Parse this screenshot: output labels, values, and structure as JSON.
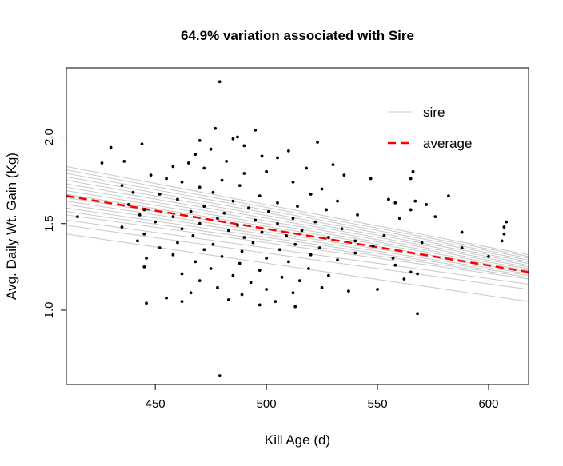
{
  "chart_data": {
    "type": "scatter",
    "title": "64.9% variation associated with Sire",
    "xlabel": "Kill Age (d)",
    "ylabel": "Avg. Daily Wt. Gain (Kg)",
    "xlim": [
      410,
      618
    ],
    "ylim": [
      0.57,
      2.4
    ],
    "xticks": [
      450,
      500,
      550,
      600
    ],
    "yticks": [
      1.0,
      1.5,
      2.0
    ],
    "ytick_labels": [
      "1.0",
      "1.5",
      "2.0"
    ],
    "legend": {
      "position": "top-right",
      "entries": [
        {
          "label": "sire",
          "color": "#c8c8c8",
          "style": "solid"
        },
        {
          "label": "average",
          "color": "#ff0000",
          "style": "dashed"
        }
      ]
    },
    "colors": {
      "points": "#000000",
      "sire": "#c8c8c8",
      "average": "#ff0000"
    },
    "average_line": {
      "x": [
        410,
        618
      ],
      "y": [
        1.66,
        1.22
      ]
    },
    "sire_lines": [
      {
        "y_at_410": 1.83,
        "y_at_618": 1.32
      },
      {
        "y_at_410": 1.81,
        "y_at_618": 1.31
      },
      {
        "y_at_410": 1.79,
        "y_at_618": 1.3
      },
      {
        "y_at_410": 1.77,
        "y_at_618": 1.29
      },
      {
        "y_at_410": 1.75,
        "y_at_618": 1.28
      },
      {
        "y_at_410": 1.73,
        "y_at_618": 1.27
      },
      {
        "y_at_410": 1.71,
        "y_at_618": 1.26
      },
      {
        "y_at_410": 1.69,
        "y_at_618": 1.25
      },
      {
        "y_at_410": 1.67,
        "y_at_618": 1.24
      },
      {
        "y_at_410": 1.65,
        "y_at_618": 1.23
      },
      {
        "y_at_410": 1.63,
        "y_at_618": 1.22
      },
      {
        "y_at_410": 1.61,
        "y_at_618": 1.21
      },
      {
        "y_at_410": 1.59,
        "y_at_618": 1.2
      },
      {
        "y_at_410": 1.57,
        "y_at_618": 1.19
      },
      {
        "y_at_410": 1.55,
        "y_at_618": 1.18
      },
      {
        "y_at_410": 1.52,
        "y_at_618": 1.15
      },
      {
        "y_at_410": 1.49,
        "y_at_618": 1.12
      },
      {
        "y_at_410": 1.44,
        "y_at_618": 1.05
      }
    ],
    "points": [
      {
        "x": 479,
        "y": 2.32
      },
      {
        "x": 477,
        "y": 2.05
      },
      {
        "x": 495,
        "y": 2.04
      },
      {
        "x": 485,
        "y": 1.99
      },
      {
        "x": 487,
        "y": 2.0
      },
      {
        "x": 470,
        "y": 1.98
      },
      {
        "x": 523,
        "y": 1.97
      },
      {
        "x": 444,
        "y": 1.96
      },
      {
        "x": 430,
        "y": 1.94
      },
      {
        "x": 475,
        "y": 1.93
      },
      {
        "x": 490,
        "y": 1.95
      },
      {
        "x": 510,
        "y": 1.92
      },
      {
        "x": 468,
        "y": 1.9
      },
      {
        "x": 498,
        "y": 1.89
      },
      {
        "x": 505,
        "y": 1.88
      },
      {
        "x": 436,
        "y": 1.86
      },
      {
        "x": 465,
        "y": 1.85
      },
      {
        "x": 482,
        "y": 1.86
      },
      {
        "x": 530,
        "y": 1.84
      },
      {
        "x": 426,
        "y": 1.85
      },
      {
        "x": 458,
        "y": 1.83
      },
      {
        "x": 472,
        "y": 1.82
      },
      {
        "x": 518,
        "y": 1.82
      },
      {
        "x": 566,
        "y": 1.8
      },
      {
        "x": 547,
        "y": 1.76
      },
      {
        "x": 448,
        "y": 1.78
      },
      {
        "x": 490,
        "y": 1.79
      },
      {
        "x": 500,
        "y": 1.8
      },
      {
        "x": 535,
        "y": 1.78
      },
      {
        "x": 455,
        "y": 1.76
      },
      {
        "x": 462,
        "y": 1.74
      },
      {
        "x": 480,
        "y": 1.75
      },
      {
        "x": 512,
        "y": 1.74
      },
      {
        "x": 565,
        "y": 1.76
      },
      {
        "x": 435,
        "y": 1.72
      },
      {
        "x": 470,
        "y": 1.71
      },
      {
        "x": 488,
        "y": 1.72
      },
      {
        "x": 525,
        "y": 1.7
      },
      {
        "x": 440,
        "y": 1.68
      },
      {
        "x": 452,
        "y": 1.67
      },
      {
        "x": 476,
        "y": 1.68
      },
      {
        "x": 497,
        "y": 1.66
      },
      {
        "x": 520,
        "y": 1.67
      },
      {
        "x": 582,
        "y": 1.66
      },
      {
        "x": 555,
        "y": 1.64
      },
      {
        "x": 567,
        "y": 1.63
      },
      {
        "x": 558,
        "y": 1.62
      },
      {
        "x": 460,
        "y": 1.64
      },
      {
        "x": 485,
        "y": 1.63
      },
      {
        "x": 505,
        "y": 1.62
      },
      {
        "x": 532,
        "y": 1.63
      },
      {
        "x": 438,
        "y": 1.61
      },
      {
        "x": 472,
        "y": 1.6
      },
      {
        "x": 492,
        "y": 1.59
      },
      {
        "x": 514,
        "y": 1.6
      },
      {
        "x": 572,
        "y": 1.61
      },
      {
        "x": 445,
        "y": 1.58
      },
      {
        "x": 466,
        "y": 1.57
      },
      {
        "x": 481,
        "y": 1.56
      },
      {
        "x": 501,
        "y": 1.57
      },
      {
        "x": 527,
        "y": 1.58
      },
      {
        "x": 565,
        "y": 1.58
      },
      {
        "x": 415,
        "y": 1.54
      },
      {
        "x": 443,
        "y": 1.55
      },
      {
        "x": 458,
        "y": 1.54
      },
      {
        "x": 478,
        "y": 1.53
      },
      {
        "x": 495,
        "y": 1.52
      },
      {
        "x": 512,
        "y": 1.53
      },
      {
        "x": 541,
        "y": 1.55
      },
      {
        "x": 576,
        "y": 1.54
      },
      {
        "x": 450,
        "y": 1.51
      },
      {
        "x": 470,
        "y": 1.5
      },
      {
        "x": 487,
        "y": 1.49
      },
      {
        "x": 505,
        "y": 1.5
      },
      {
        "x": 522,
        "y": 1.51
      },
      {
        "x": 560,
        "y": 1.53
      },
      {
        "x": 608,
        "y": 1.51
      },
      {
        "x": 607,
        "y": 1.48
      },
      {
        "x": 607,
        "y": 1.44
      },
      {
        "x": 606,
        "y": 1.4
      },
      {
        "x": 435,
        "y": 1.48
      },
      {
        "x": 462,
        "y": 1.47
      },
      {
        "x": 483,
        "y": 1.46
      },
      {
        "x": 498,
        "y": 1.45
      },
      {
        "x": 516,
        "y": 1.46
      },
      {
        "x": 534,
        "y": 1.47
      },
      {
        "x": 588,
        "y": 1.45
      },
      {
        "x": 445,
        "y": 1.44
      },
      {
        "x": 467,
        "y": 1.43
      },
      {
        "x": 490,
        "y": 1.42
      },
      {
        "x": 509,
        "y": 1.43
      },
      {
        "x": 528,
        "y": 1.42
      },
      {
        "x": 553,
        "y": 1.43
      },
      {
        "x": 442,
        "y": 1.4
      },
      {
        "x": 460,
        "y": 1.39
      },
      {
        "x": 476,
        "y": 1.38
      },
      {
        "x": 494,
        "y": 1.39
      },
      {
        "x": 513,
        "y": 1.38
      },
      {
        "x": 540,
        "y": 1.4
      },
      {
        "x": 570,
        "y": 1.39
      },
      {
        "x": 452,
        "y": 1.36
      },
      {
        "x": 472,
        "y": 1.35
      },
      {
        "x": 489,
        "y": 1.34
      },
      {
        "x": 506,
        "y": 1.35
      },
      {
        "x": 524,
        "y": 1.36
      },
      {
        "x": 548,
        "y": 1.37
      },
      {
        "x": 588,
        "y": 1.36
      },
      {
        "x": 458,
        "y": 1.32
      },
      {
        "x": 480,
        "y": 1.31
      },
      {
        "x": 500,
        "y": 1.3
      },
      {
        "x": 520,
        "y": 1.32
      },
      {
        "x": 540,
        "y": 1.33
      },
      {
        "x": 600,
        "y": 1.31
      },
      {
        "x": 446,
        "y": 1.3
      },
      {
        "x": 468,
        "y": 1.28
      },
      {
        "x": 488,
        "y": 1.27
      },
      {
        "x": 510,
        "y": 1.28
      },
      {
        "x": 532,
        "y": 1.29
      },
      {
        "x": 557,
        "y": 1.3
      },
      {
        "x": 445,
        "y": 1.25
      },
      {
        "x": 475,
        "y": 1.24
      },
      {
        "x": 497,
        "y": 1.23
      },
      {
        "x": 519,
        "y": 1.24
      },
      {
        "x": 558,
        "y": 1.26
      },
      {
        "x": 565,
        "y": 1.22
      },
      {
        "x": 568,
        "y": 1.21
      },
      {
        "x": 462,
        "y": 1.21
      },
      {
        "x": 485,
        "y": 1.2
      },
      {
        "x": 507,
        "y": 1.19
      },
      {
        "x": 528,
        "y": 1.2
      },
      {
        "x": 470,
        "y": 1.17
      },
      {
        "x": 493,
        "y": 1.16
      },
      {
        "x": 515,
        "y": 1.17
      },
      {
        "x": 562,
        "y": 1.18
      },
      {
        "x": 478,
        "y": 1.13
      },
      {
        "x": 500,
        "y": 1.12
      },
      {
        "x": 525,
        "y": 1.13
      },
      {
        "x": 550,
        "y": 1.12
      },
      {
        "x": 466,
        "y": 1.1
      },
      {
        "x": 489,
        "y": 1.09
      },
      {
        "x": 512,
        "y": 1.1
      },
      {
        "x": 537,
        "y": 1.11
      },
      {
        "x": 455,
        "y": 1.07
      },
      {
        "x": 483,
        "y": 1.06
      },
      {
        "x": 504,
        "y": 1.05
      },
      {
        "x": 446,
        "y": 1.04
      },
      {
        "x": 462,
        "y": 1.05
      },
      {
        "x": 497,
        "y": 1.03
      },
      {
        "x": 513,
        "y": 1.02
      },
      {
        "x": 568,
        "y": 0.98
      },
      {
        "x": 479,
        "y": 0.62
      }
    ]
  }
}
